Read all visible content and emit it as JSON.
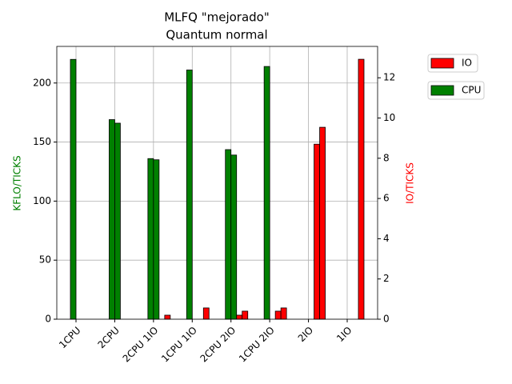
{
  "chart_data": {
    "type": "bar",
    "title": "MLFQ \"mejorado\"",
    "subtitle": "Quantum normal",
    "ylabel": "KFLO/TICKS",
    "y2label": "IO/TICKS",
    "categories": [
      "1CPU",
      "2CPU",
      "2CPU 1IO",
      "1CPU 1IO",
      "2CPU 2IO",
      "1CPU 2IO",
      "2IO",
      "1IO"
    ],
    "series": [
      {
        "name": "CPU",
        "color": "#008000",
        "axis": "y",
        "values": [
          [
            220,
            0
          ],
          [
            169,
            166
          ],
          [
            136,
            135
          ],
          [
            211,
            0
          ],
          [
            143.6,
            139
          ],
          [
            214,
            0
          ],
          [
            0,
            0
          ],
          [
            0,
            0
          ]
        ]
      },
      {
        "name": "IO",
        "color": "#ff0000",
        "axis": "y2",
        "values": [
          [
            0,
            0
          ],
          [
            0,
            0
          ],
          [
            0,
            0.2
          ],
          [
            0,
            0.56
          ],
          [
            0.2,
            0.4
          ],
          [
            0.4,
            0.56
          ],
          [
            8.7,
            9.54
          ],
          [
            0,
            12.92
          ]
        ]
      }
    ],
    "ylim": [
      0,
      231
    ],
    "yticks": [
      0,
      50,
      100,
      150,
      200
    ],
    "y2lim": [
      0,
      13.56
    ],
    "y2ticks": [
      0,
      2,
      4,
      6,
      8,
      10,
      12
    ],
    "grid": true,
    "legend": "outside upper right"
  }
}
